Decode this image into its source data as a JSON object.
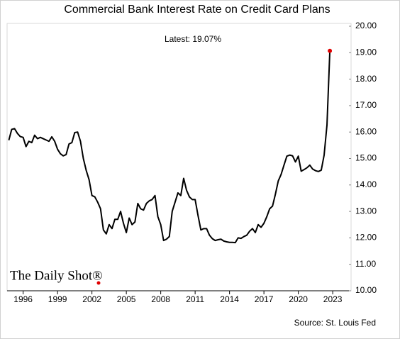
{
  "chart_data": {
    "type": "line",
    "title": "Commercial Bank Interest Rate on Credit Card Plans",
    "annotation": "Latest:  19.07%",
    "source": "Source: St. Louis Fed",
    "logo": "The Daily Shot®",
    "color": "#000000",
    "last_point_color": "#e00000",
    "xlim": [
      1994.6,
      2024.6
    ],
    "xticks": [
      1996,
      1999,
      2002,
      2005,
      2008,
      2011,
      2014,
      2017,
      2020,
      2023
    ],
    "ylim": [
      10,
      20
    ],
    "yticks": [
      {
        "value": 10,
        "label": "10.00"
      },
      {
        "value": 11,
        "label": "11.00"
      },
      {
        "value": 12,
        "label": "12.00"
      },
      {
        "value": 13,
        "label": "13.00"
      },
      {
        "value": 14,
        "label": "14.00"
      },
      {
        "value": 15,
        "label": "15.00"
      },
      {
        "value": 16,
        "label": "16.00"
      },
      {
        "value": 17,
        "label": "17.00"
      },
      {
        "value": 18,
        "label": "18.00"
      },
      {
        "value": 19,
        "label": "19.00"
      },
      {
        "value": 20,
        "label": "20.00"
      }
    ],
    "x": [
      1994.75,
      1995,
      1995.25,
      1995.5,
      1995.75,
      1996,
      1996.25,
      1996.5,
      1996.75,
      1997,
      1997.25,
      1997.5,
      1997.75,
      1998,
      1998.25,
      1998.5,
      1998.75,
      1999,
      1999.25,
      1999.5,
      1999.75,
      2000,
      2000.25,
      2000.5,
      2000.75,
      2001,
      2001.25,
      2001.5,
      2001.75,
      2002,
      2002.25,
      2002.5,
      2002.75,
      2003,
      2003.25,
      2003.5,
      2003.75,
      2004,
      2004.25,
      2004.5,
      2004.75,
      2005,
      2005.25,
      2005.5,
      2005.75,
      2006,
      2006.25,
      2006.5,
      2006.75,
      2007,
      2007.25,
      2007.5,
      2007.75,
      2008,
      2008.25,
      2008.5,
      2008.75,
      2009,
      2009.25,
      2009.5,
      2009.75,
      2010,
      2010.25,
      2010.5,
      2010.75,
      2011,
      2011.25,
      2011.5,
      2011.75,
      2012,
      2012.25,
      2012.5,
      2012.75,
      2013,
      2013.25,
      2013.5,
      2013.75,
      2014,
      2014.25,
      2014.5,
      2014.75,
      2015,
      2015.25,
      2015.5,
      2015.75,
      2016,
      2016.25,
      2016.5,
      2016.75,
      2017,
      2017.25,
      2017.5,
      2017.75,
      2018,
      2018.25,
      2018.5,
      2018.75,
      2019,
      2019.25,
      2019.5,
      2019.75,
      2020,
      2020.25,
      2020.5,
      2020.75,
      2021,
      2021.25,
      2021.5,
      2021.75,
      2022,
      2022.25,
      2022.5,
      2022.75
    ],
    "values": [
      15.69,
      16.1,
      16.13,
      15.95,
      15.83,
      15.8,
      15.45,
      15.65,
      15.6,
      15.88,
      15.75,
      15.8,
      15.75,
      15.7,
      15.65,
      15.82,
      15.65,
      15.35,
      15.18,
      15.1,
      15.15,
      15.55,
      15.6,
      15.98,
      16.0,
      15.65,
      15.0,
      14.55,
      14.2,
      13.6,
      13.55,
      13.35,
      13.1,
      12.3,
      12.15,
      12.5,
      12.35,
      12.7,
      12.7,
      13.0,
      12.55,
      12.2,
      12.75,
      12.5,
      12.6,
      13.3,
      13.1,
      13.05,
      13.3,
      13.4,
      13.45,
      13.6,
      12.8,
      12.5,
      11.9,
      11.95,
      12.05,
      13.0,
      13.35,
      13.7,
      13.6,
      14.25,
      13.8,
      13.55,
      13.45,
      13.45,
      12.85,
      12.3,
      12.35,
      12.35,
      12.1,
      11.97,
      11.9,
      11.93,
      11.95,
      11.88,
      11.85,
      11.83,
      11.83,
      11.82,
      12.0,
      11.98,
      12.05,
      12.1,
      12.25,
      12.35,
      12.2,
      12.5,
      12.4,
      12.55,
      12.8,
      13.1,
      13.2,
      13.65,
      14.15,
      14.4,
      14.75,
      15.09,
      15.13,
      15.1,
      14.87,
      15.09,
      14.52,
      14.58,
      14.65,
      14.75,
      14.6,
      14.54,
      14.51,
      14.56,
      15.13,
      16.27,
      19.07
    ]
  }
}
